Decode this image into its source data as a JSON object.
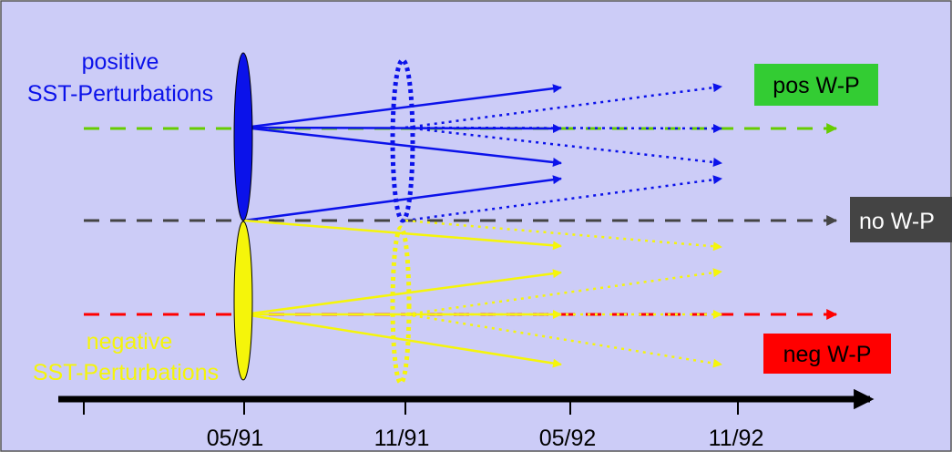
{
  "labels": {
    "positive_line1": "positive",
    "positive_line2": "SST-Perturbations",
    "negative_line1": "negative",
    "negative_line2": "SST-Perturbations"
  },
  "boxes": {
    "pos": "pos W-P",
    "no": "no W-P",
    "neg": "neg W-P"
  },
  "axis": {
    "ticks": [
      "05/91",
      "11/91",
      "05/92",
      "11/92"
    ]
  },
  "colors": {
    "panel": "#ccccf7",
    "blue": "#0b12ea",
    "yellow": "#f5f50a",
    "green_line": "#66cc00",
    "green_box": "#33cc33",
    "grey": "#444444",
    "red": "#ff0000",
    "axis": "#000000"
  }
}
